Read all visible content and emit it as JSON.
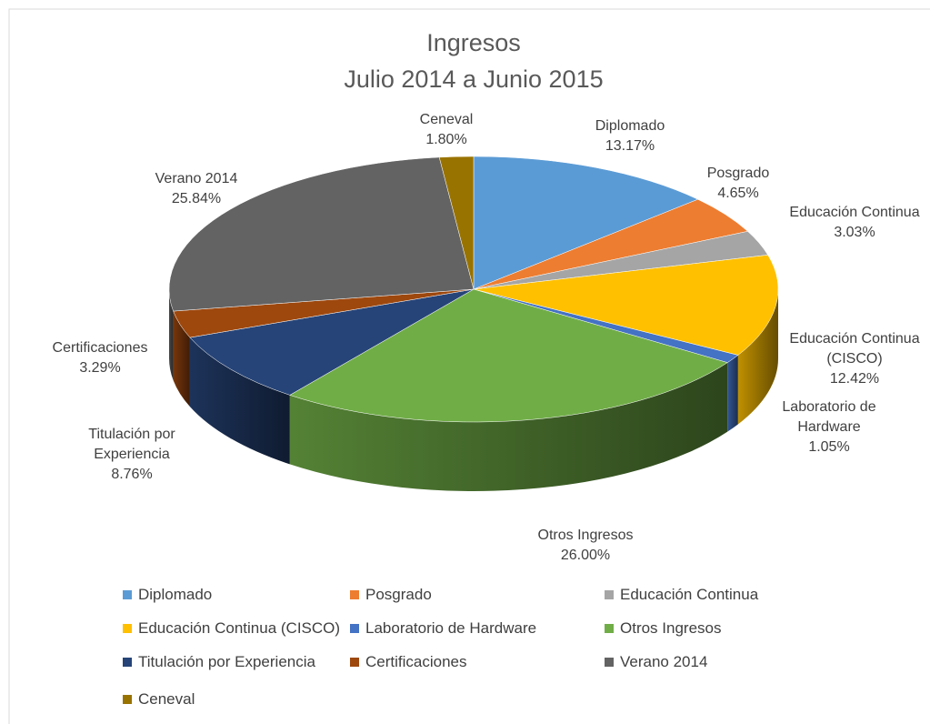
{
  "chart_data": {
    "type": "pie",
    "title": "Ingresos",
    "subtitle": "Julio 2014 a Junio 2015",
    "categories": [
      "Diplomado",
      "Posgrado",
      "Educación Continua",
      "Educación Continua (CISCO)",
      "Laboratorio de Hardware",
      "Otros Ingresos",
      "Titulación por Experiencia",
      "Certificaciones",
      "Verano 2014",
      "Ceneval"
    ],
    "values": [
      13.17,
      4.65,
      3.03,
      12.42,
      1.05,
      26.0,
      8.76,
      3.29,
      25.84,
      1.8
    ],
    "value_labels": [
      "13.17%",
      "4.65%",
      "3.03%",
      "12.42%",
      "1.05%",
      "26.00%",
      "8.76%",
      "3.29%",
      "25.84%",
      "1.80%"
    ],
    "colors": [
      "#5b9bd5",
      "#ed7d31",
      "#a5a5a5",
      "#ffc000",
      "#4472c4",
      "#70ad47",
      "#264478",
      "#9e480e",
      "#636363",
      "#997300"
    ],
    "legend": "bottom"
  }
}
